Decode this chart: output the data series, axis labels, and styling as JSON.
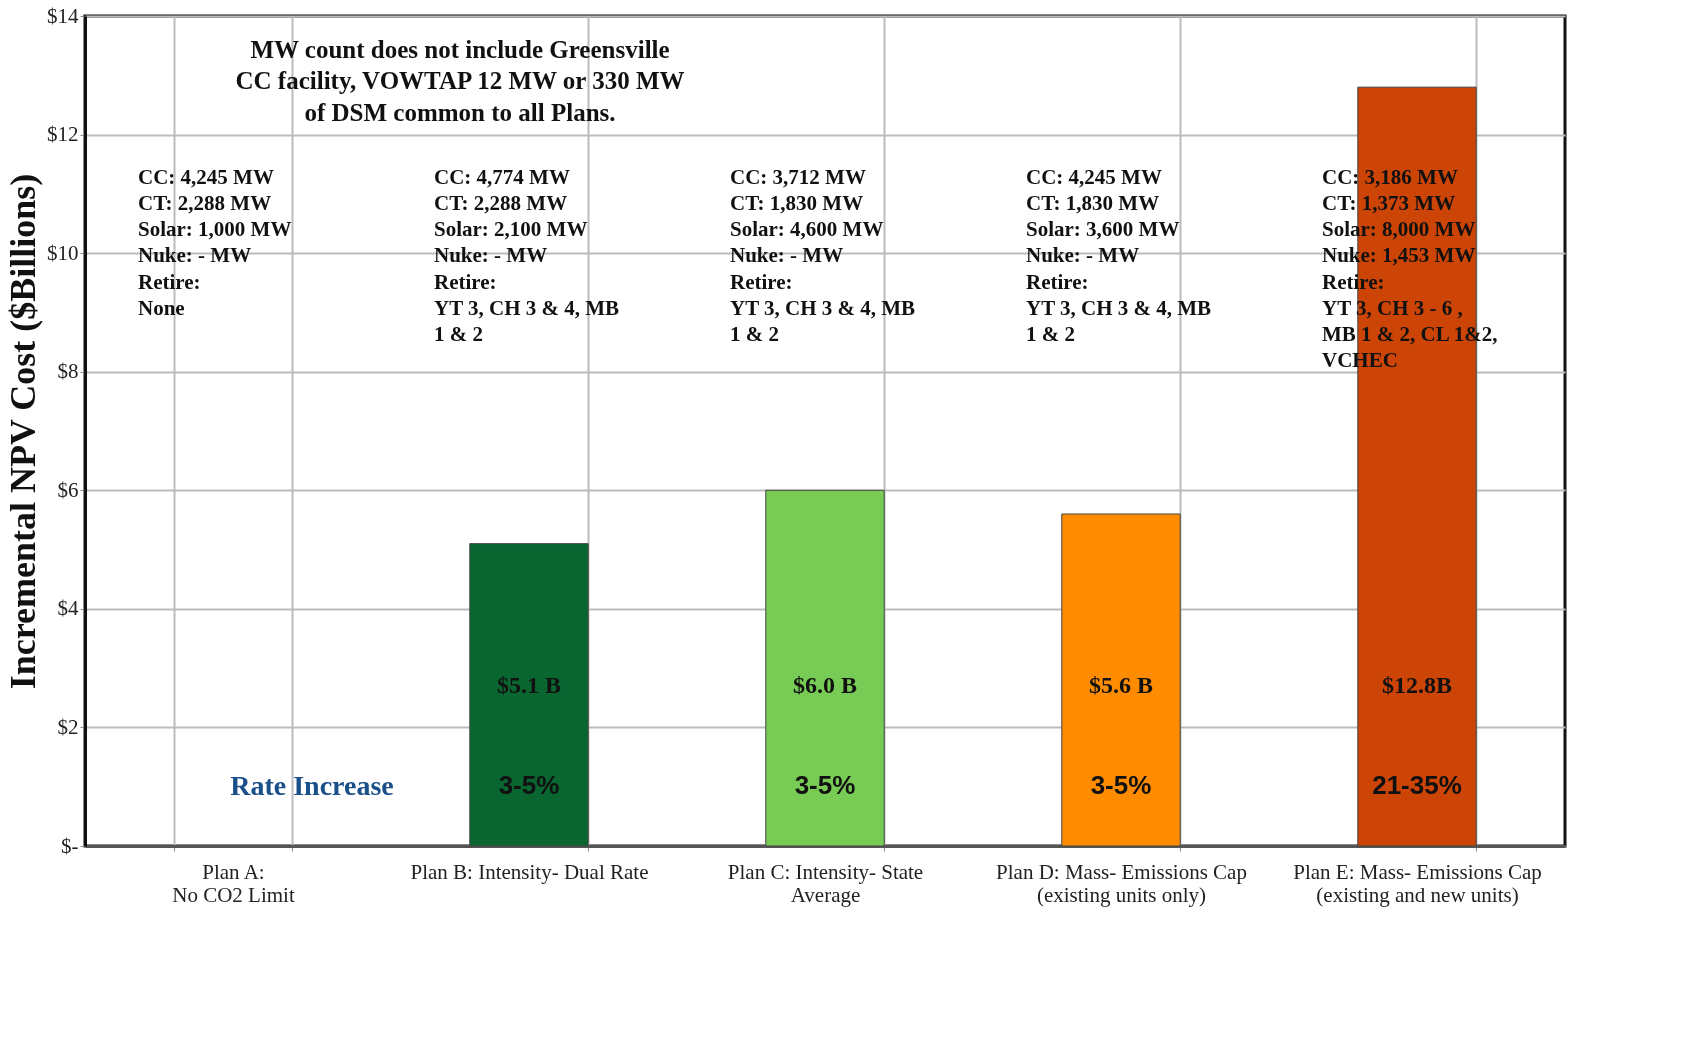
{
  "chart_data": {
    "type": "bar",
    "ylabel": "Incremental NPV Cost  ($Billions)",
    "categories": [
      "Plan A:\nNo CO2 Limit",
      "Plan B: Intensity- Dual Rate",
      "Plan C: Intensity- State\nAverage",
      "Plan D: Mass- Emissions Cap\n(existing units only)",
      "Plan E: Mass- Emissions Cap\n(existing and new units)"
    ],
    "values": [
      null,
      5.1,
      6.0,
      5.6,
      12.8
    ],
    "colors": [
      "#0a6630",
      "#0a6630",
      "#78cc55",
      "#ff8c00",
      "#cc4406"
    ],
    "value_labels": [
      null,
      "$5.1 B",
      "$6.0 B",
      "$5.6 B",
      "$12.8B"
    ],
    "ylim": [
      0,
      14
    ],
    "yticks": [
      {
        "value": 0,
        "label": "$-"
      },
      {
        "value": 2,
        "label": "$2"
      },
      {
        "value": 4,
        "label": "$4"
      },
      {
        "value": 6,
        "label": "$6"
      },
      {
        "value": 8,
        "label": "$8"
      },
      {
        "value": 10,
        "label": "$10"
      },
      {
        "value": 12,
        "label": "$12"
      },
      {
        "value": 14,
        "label": "$14"
      }
    ],
    "grid": true,
    "annotations": [
      "MW count does not include Greensville\nCC facility, VOWTAP 12 MW or 330 MW\nof DSM common to all Plans.",
      "CC:  4,245 MW\nCT:  2,288 MW\nSolar:  1,000 MW\nNuke:  -  MW\nRetire:\nNone",
      "CC:  4,774 MW\nCT:  2,288 MW\nSolar:  2,100 MW\nNuke:  -  MW\nRetire:\nYT 3, CH 3 & 4,  MB\n1 & 2",
      "CC:  3,712 MW\nCT:  1,830 MW\nSolar:  4,600 MW\nNuke:  -  MW\nRetire:\nYT 3, CH 3 & 4,  MB\n1 & 2",
      "CC:  4,245 MW\nCT:  1,830 MW\nSolar:  3,600 MW\nNuke:  -  MW\nRetire:\nYT 3, CH 3 & 4,  MB\n1 & 2",
      "CC:  3,186 MW\nCT:  1,373 MW\nSolar:  8,000 MW\nNuke:  1,453 MW\nRetire:\nYT 3, CH 3 - 6 ,\nMB 1 & 2, CL 1&2,\nVCHEC",
      "Rate Increase",
      "3-5%",
      "3-5%",
      "3-5%",
      "21-35%"
    ]
  }
}
